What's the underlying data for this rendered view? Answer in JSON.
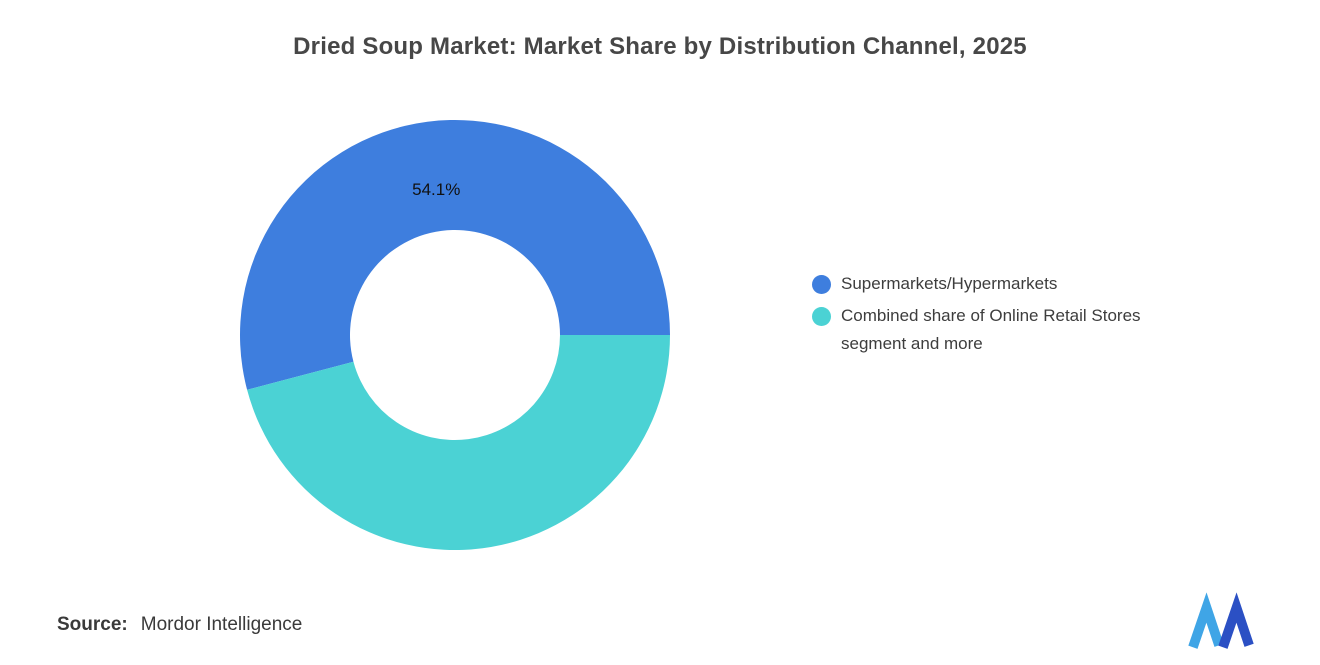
{
  "chart_data": {
    "type": "pie",
    "subtype": "donut",
    "title": "Dried Soup Market: Market Share by Distribution Channel, 2025",
    "start_angle_deg": 0,
    "direction": "counterclockwise",
    "inner_radius_ratio": 0.49,
    "legend_position": "right",
    "grid": false,
    "series": [
      {
        "name": "Supermarkets/Hypermarkets",
        "value": 54.1,
        "color": "#3E7EDE",
        "data_label": "54.1%"
      },
      {
        "name": "Combined share of Online Retail Stores segment and more",
        "value": 45.9,
        "color": "#4BD2D4",
        "data_label": ""
      }
    ]
  },
  "footer": {
    "source_label": "Source:",
    "source_value": "Mordor Intelligence"
  },
  "logo": {
    "name": "mordor-intelligence-logo",
    "colors": {
      "light": "#3FA5E6",
      "dark": "#2B50C4"
    }
  }
}
